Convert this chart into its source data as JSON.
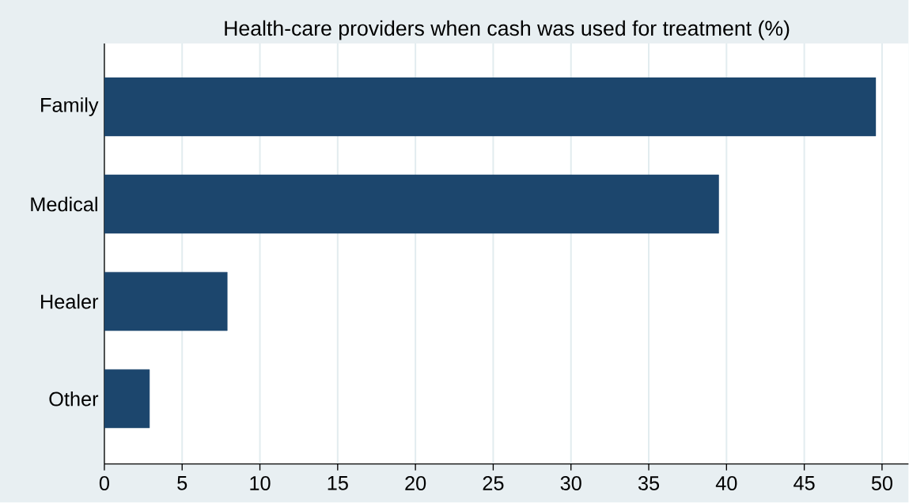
{
  "chart_data": {
    "type": "bar",
    "orientation": "horizontal",
    "title": "Health-care providers when cash was used for treatment (%)",
    "categories": [
      "Family",
      "Medical",
      "Healer",
      "Other"
    ],
    "values": [
      49.6,
      39.5,
      7.9,
      2.9
    ],
    "color": "#1c466d",
    "xlim": [
      0,
      51.7
    ],
    "xticks": [
      0,
      5,
      10,
      15,
      20,
      25,
      30,
      35,
      40,
      45,
      50
    ],
    "grid": "x"
  }
}
